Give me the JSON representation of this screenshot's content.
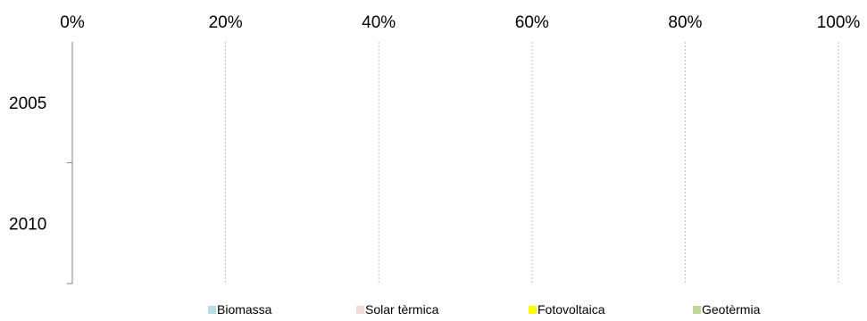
{
  "chart_data": {
    "type": "bar",
    "orientation": "horizontal",
    "stacked": "percent",
    "categories": [
      "2005",
      "2010"
    ],
    "series": [
      {
        "name": "Biomassa",
        "color": "#b7dde8",
        "values": [
          null,
          null
        ]
      },
      {
        "name": "Solar tèrmica",
        "color": "#f2dcdb",
        "values": [
          null,
          null
        ]
      },
      {
        "name": "Fotovoltaica",
        "color": "#ffff00",
        "values": [
          null,
          null
        ]
      },
      {
        "name": "Geotèrmia",
        "color": "#c3d69b",
        "values": [
          null,
          null
        ]
      }
    ],
    "x_ticks": [
      "0%",
      "20%",
      "40%",
      "60%",
      "80%",
      "100%"
    ],
    "xlim": [
      0,
      100
    ],
    "x_axis_position": "top",
    "grid": true,
    "legend_position": "bottom"
  }
}
